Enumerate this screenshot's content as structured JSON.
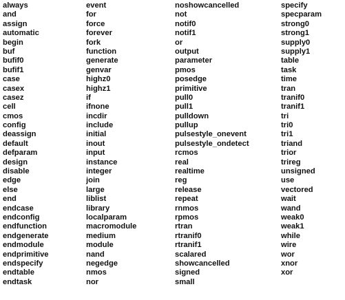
{
  "keywords": {
    "columns": [
      [
        "always",
        "and",
        "assign",
        "automatic",
        "begin",
        "buf",
        "bufif0",
        "bufif1",
        "case",
        "casex",
        "casez",
        "cell",
        "cmos",
        "config",
        "deassign",
        "default",
        "defparam",
        "design",
        "disable",
        "edge",
        "else",
        "end",
        "endcase",
        "endconfig",
        "endfunction",
        "endgenerate",
        "endmodule",
        "endprimitive",
        "endspecify",
        "endtable",
        "endtask"
      ],
      [
        "event",
        "for",
        "force",
        "forever",
        "fork",
        "function",
        "generate",
        "genvar",
        "highz0",
        "highz1",
        "if",
        "ifnone",
        "incdir",
        "include",
        "initial",
        "inout",
        "input",
        "instance",
        "integer",
        "join",
        "large",
        "liblist",
        "library",
        "localparam",
        "macromodule",
        "medium",
        "module",
        "nand",
        "negedge",
        "nmos",
        "nor"
      ],
      [
        "noshowcancelled",
        "not",
        "notif0",
        "notif1",
        "or",
        "output",
        "parameter",
        "pmos",
        "posedge",
        "primitive",
        "pull0",
        "pull1",
        "pulldown",
        "pullup",
        "pulsestyle_onevent",
        "pulsestyle_ondetect",
        "rcmos",
        "real",
        "realtime",
        "reg",
        "release",
        "repeat",
        "rnmos",
        "rpmos",
        "rtran",
        "rtranif0",
        "rtranif1",
        "scalared",
        "showcancelled",
        "signed",
        "small"
      ],
      [
        "specify",
        "specparam",
        "strong0",
        "strong1",
        "supply0",
        "supply1",
        "table",
        "task",
        "time",
        "tran",
        "tranif0",
        "tranif1",
        "tri",
        "tri0",
        "tri1",
        "triand",
        "trior",
        "trireg",
        "unsigned",
        "use",
        "vectored",
        "wait",
        "wand",
        "weak0",
        "weak1",
        "while",
        "wire",
        "wor",
        "xnor",
        "xor"
      ]
    ]
  }
}
